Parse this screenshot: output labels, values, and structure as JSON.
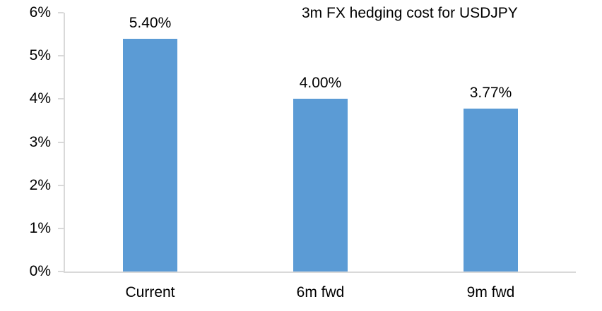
{
  "chart_data": {
    "type": "bar",
    "title": "3m FX hedging cost for USDJPY",
    "categories": [
      "Current",
      "6m fwd",
      "9m fwd"
    ],
    "values": [
      5.4,
      4.0,
      3.77
    ],
    "data_labels": [
      "5.40%",
      "4.00%",
      "3.77%"
    ],
    "xlabel": "",
    "ylabel": "",
    "ylim": [
      0,
      6
    ],
    "ytick_step": 1,
    "ytick_labels": [
      "0%",
      "1%",
      "2%",
      "3%",
      "4%",
      "5%",
      "6%"
    ],
    "grid": false,
    "legend": false,
    "colors": {
      "bar": "#5b9bd5",
      "axis": "#d9d9d9",
      "text": "#000000",
      "background": "#ffffff"
    }
  }
}
